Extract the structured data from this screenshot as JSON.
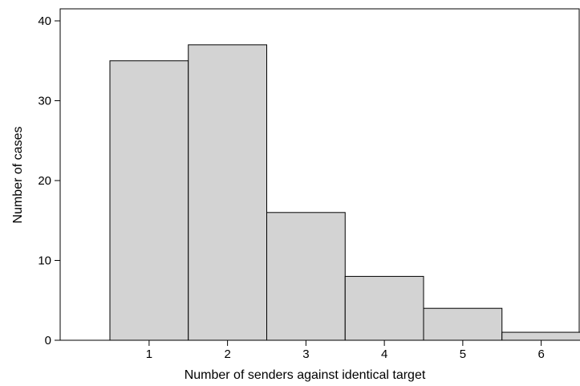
{
  "chart_data": {
    "type": "bar",
    "categories": [
      "1",
      "2",
      "3",
      "4",
      "5",
      "6"
    ],
    "values": [
      35,
      37,
      16,
      8,
      4,
      1
    ],
    "xlabel": "Number of senders against identical target",
    "ylabel": "Number of cases",
    "ylim": [
      0,
      40
    ],
    "yticks": [
      "0",
      "10",
      "20",
      "30",
      "40"
    ],
    "grid": false,
    "legend": false,
    "bar_fill": "#d3d3d3",
    "bar_stroke": "#000000"
  }
}
